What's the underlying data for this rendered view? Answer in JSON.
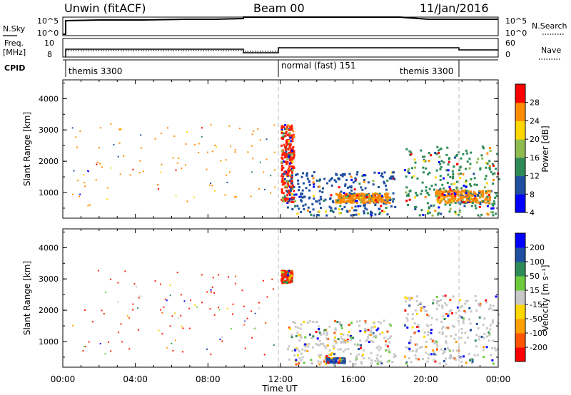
{
  "header": {
    "radar": "Unwin (fitACF)",
    "beam": "Beam 00",
    "date": "11/Jan/2016"
  },
  "top_panels": {
    "nsky_label": "N.Sky",
    "nsky_ticks": [
      "10^5",
      "10^0"
    ],
    "nsearch_label": "N.Search",
    "nsearch_ticks": [
      "10^5",
      "10^0"
    ],
    "freq_label_1": "Freq.",
    "freq_label_2": "[MHz]",
    "freq_ticks": [
      "10",
      "8"
    ],
    "nave_label": "Nave",
    "nave_ticks": [
      "60",
      "0"
    ],
    "cpid_label": "CPID",
    "cpid_segments": [
      "themis 3300",
      "normal (fast) 151",
      "themis 3300"
    ]
  },
  "chart_data": [
    {
      "type": "heatmap",
      "title": "",
      "ylabel": "Slant Range [km]",
      "yticks": [
        "4000",
        "3000",
        "2000",
        "1000"
      ],
      "ylim": [
        180,
        4600
      ],
      "xlim": [
        0,
        24
      ],
      "colorbar": {
        "label": "Power [dB]",
        "ticks": [
          "28",
          "24",
          "20",
          "16",
          "12",
          "8",
          "4"
        ],
        "colors": [
          "#0000ff",
          "#1f4fa0",
          "#2e8b57",
          "#8fbc4f",
          "#ffd700",
          "#ff8c00",
          "#ff0000"
        ]
      },
      "scatter_regions": [
        {
          "x": [
            0.5,
            11.7
          ],
          "y": [
            600,
            3300
          ],
          "color": "#ff8c00",
          "note": "sparse"
        },
        {
          "x": [
            12.0,
            12.7
          ],
          "y": [
            700,
            3200
          ],
          "color": "#ff2000"
        },
        {
          "x": [
            12.3,
            18.3
          ],
          "y": [
            300,
            1700
          ],
          "color": "#1f4fa0"
        },
        {
          "x": [
            15.0,
            18.0
          ],
          "y": [
            700,
            1000
          ],
          "color": "#ff8c00"
        },
        {
          "x": [
            18.8,
            24.0
          ],
          "y": [
            300,
            2500
          ],
          "color": "#2e8b57"
        },
        {
          "x": [
            20.5,
            23.5
          ],
          "y": [
            700,
            1100
          ],
          "color": "#ff8c00"
        }
      ]
    },
    {
      "type": "heatmap",
      "title": "",
      "ylabel": "Slant Range [km]",
      "yticks": [
        "4000",
        "3000",
        "2000",
        "1000"
      ],
      "ylim": [
        180,
        4600
      ],
      "xlim": [
        0,
        24
      ],
      "xticks": [
        "00:00",
        "04:00",
        "08:00",
        "12:00",
        "16:00",
        "20:00",
        "00:00"
      ],
      "xlabel": "Time UT",
      "colorbar": {
        "label": "Velocity [m s⁻¹]",
        "ticks": [
          "200",
          "100",
          "50",
          "15",
          "-15",
          "-50",
          "-100",
          "-200"
        ],
        "colors": [
          "#ff0000",
          "#ff5500",
          "#ff9f00",
          "#ffd700",
          "#c8c8c8",
          "#6ecb3c",
          "#2e8b57",
          "#1f4fa0",
          "#0000ff"
        ]
      },
      "scatter_regions": [
        {
          "x": [
            0.5,
            11.7
          ],
          "y": [
            600,
            3300
          ],
          "color": "#ff2000",
          "note": "sparse"
        },
        {
          "x": [
            12.0,
            12.6
          ],
          "y": [
            2900,
            3300
          ],
          "color": "#ff2000"
        },
        {
          "x": [
            12.3,
            18.3
          ],
          "y": [
            300,
            1700
          ],
          "color": "#c8c8c8"
        },
        {
          "x": [
            14.5,
            15.5
          ],
          "y": [
            350,
            500
          ],
          "color": "#1f4fa0"
        },
        {
          "x": [
            18.8,
            24.0
          ],
          "y": [
            300,
            2500
          ],
          "color": "#c8c8c8"
        }
      ]
    }
  ]
}
